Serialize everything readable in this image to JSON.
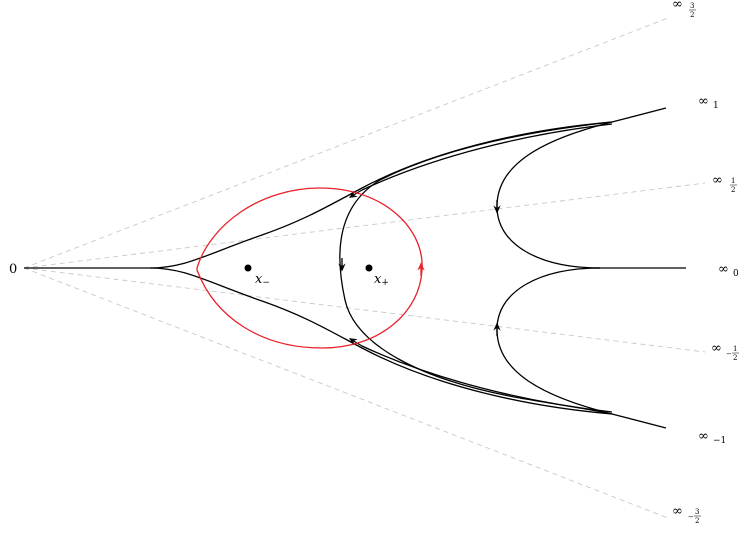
{
  "origin_label": "0",
  "infinity_symbol": "∞",
  "minus_sign": "−",
  "fraction_numerator": "1",
  "fraction_denominator": "2",
  "fraction_numerator_3": "3",
  "rays": [
    {
      "name": "inf-3-2",
      "sub_type": "fraction",
      "numerator": "3",
      "sign": ""
    },
    {
      "name": "inf-1",
      "sub_type": "integer",
      "value": "1"
    },
    {
      "name": "inf-1-2",
      "sub_type": "fraction",
      "numerator": "1",
      "sign": ""
    },
    {
      "name": "inf-0",
      "sub_type": "integer",
      "value": "0"
    },
    {
      "name": "inf-neg-1-2",
      "sub_type": "fraction",
      "numerator": "1",
      "sign": "−"
    },
    {
      "name": "inf-neg-1",
      "sub_type": "integer",
      "value": "−1"
    },
    {
      "name": "inf-neg-3-2",
      "sub_type": "fraction",
      "numerator": "3",
      "sign": "−"
    }
  ],
  "points": [
    {
      "name": "x-minus",
      "var": "x",
      "sub": "−"
    },
    {
      "name": "x-plus",
      "var": "x",
      "sub": "+"
    }
  ],
  "colors": {
    "main": "#000000",
    "loop": "#e8222a",
    "guide": "#c8c8c8"
  }
}
